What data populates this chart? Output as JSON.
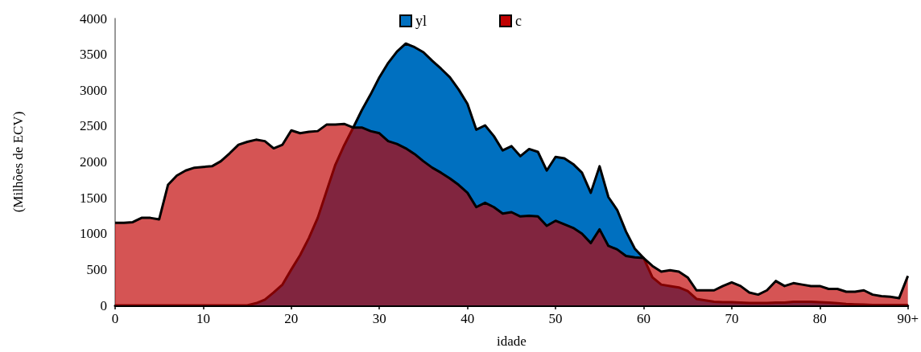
{
  "chart_data": {
    "type": "area",
    "xlabel": "idade",
    "ylabel": "(Milhões de ECV)",
    "x": [
      0,
      1,
      2,
      3,
      4,
      5,
      6,
      7,
      8,
      9,
      10,
      11,
      12,
      13,
      14,
      15,
      16,
      17,
      18,
      19,
      20,
      21,
      22,
      23,
      24,
      25,
      26,
      27,
      28,
      29,
      30,
      31,
      32,
      33,
      34,
      35,
      36,
      37,
      38,
      39,
      40,
      41,
      42,
      43,
      44,
      45,
      46,
      47,
      48,
      49,
      50,
      51,
      52,
      53,
      54,
      55,
      56,
      57,
      58,
      59,
      60,
      61,
      62,
      63,
      64,
      65,
      66,
      67,
      68,
      69,
      70,
      71,
      72,
      73,
      74,
      75,
      76,
      77,
      78,
      79,
      80,
      81,
      82,
      83,
      84,
      85,
      86,
      87,
      88,
      89,
      90
    ],
    "series": [
      {
        "name": "yl",
        "color": "#0070c0",
        "values": [
          0,
          0,
          0,
          0,
          0,
          0,
          0,
          0,
          0,
          0,
          0,
          0,
          0,
          0,
          0,
          0,
          30,
          80,
          180,
          290,
          500,
          700,
          940,
          1220,
          1590,
          1960,
          2230,
          2470,
          2720,
          2940,
          3180,
          3380,
          3540,
          3650,
          3600,
          3530,
          3410,
          3300,
          3180,
          3010,
          2810,
          2450,
          2510,
          2360,
          2160,
          2220,
          2080,
          2180,
          2140,
          1880,
          2070,
          2050,
          1970,
          1850,
          1570,
          1940,
          1510,
          1330,
          1030,
          790,
          660,
          390,
          290,
          270,
          250,
          200,
          90,
          70,
          50,
          45,
          45,
          40,
          35,
          35,
          35,
          40,
          40,
          50,
          50,
          50,
          45,
          40,
          30,
          20,
          15,
          10,
          5,
          5,
          5,
          5,
          5
        ]
      },
      {
        "name": "c",
        "color": "#c00000",
        "values": [
          1150,
          1150,
          1160,
          1220,
          1220,
          1200,
          1680,
          1810,
          1880,
          1920,
          1930,
          1940,
          2010,
          2120,
          2240,
          2280,
          2310,
          2290,
          2190,
          2240,
          2440,
          2400,
          2420,
          2430,
          2520,
          2520,
          2530,
          2480,
          2480,
          2430,
          2400,
          2290,
          2250,
          2190,
          2110,
          2010,
          1920,
          1850,
          1770,
          1680,
          1570,
          1370,
          1430,
          1370,
          1280,
          1300,
          1240,
          1250,
          1240,
          1110,
          1180,
          1130,
          1080,
          1000,
          870,
          1060,
          830,
          780,
          690,
          670,
          660,
          550,
          470,
          490,
          470,
          390,
          210,
          210,
          210,
          270,
          320,
          270,
          180,
          150,
          210,
          340,
          270,
          310,
          290,
          270,
          270,
          230,
          230,
          190,
          190,
          210,
          150,
          130,
          120,
          100,
          410
        ]
      }
    ],
    "xlim": [
      0,
      90
    ],
    "xticks": [
      0,
      10,
      20,
      30,
      40,
      50,
      60,
      70,
      80,
      {
        "value": 90,
        "label": "90+"
      }
    ],
    "ylim": [
      0,
      4000
    ],
    "yticks": [
      0,
      500,
      1000,
      1500,
      2000,
      2500,
      3000,
      3500,
      4000
    ],
    "grid": false,
    "legend": "top",
    "marker": "none",
    "line_style": "solid"
  }
}
